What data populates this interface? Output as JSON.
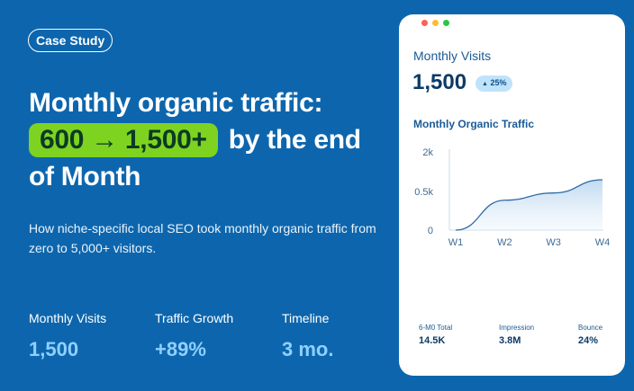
{
  "badge": "Case Study",
  "headline": {
    "line1": "Monthly organic traffic:",
    "highlight": "600 → 1,500+",
    "rest": "by the end of Month"
  },
  "subtitle": "How niche-specific local SEO took monthly organic traffic from zero to 5,000+ visitors.",
  "stats": [
    {
      "label": "Monthly Visits",
      "value": "1,500"
    },
    {
      "label": "Traffic Growth",
      "value": "+89%"
    },
    {
      "label": "Timeline",
      "value": "3 mo."
    }
  ],
  "card": {
    "title": "Monthly Visits",
    "value": "1,500",
    "change": "25%",
    "chart_title": "Monthly Organic Traffic",
    "metrics": [
      {
        "label": "6-M0 Total",
        "value": "14.5K"
      },
      {
        "label": "Impression",
        "value": "3.8M"
      },
      {
        "label": "Bounce",
        "value": "24%"
      }
    ]
  },
  "colors": {
    "background": "#0d66ad",
    "highlight": "#7ed321",
    "stat_value": "#8fd0ff",
    "window_dots": [
      "#ff5f57",
      "#febc2e",
      "#28c840"
    ]
  },
  "chart_data": {
    "type": "area",
    "x": [
      "W1",
      "W2",
      "W3",
      "W4"
    ],
    "y_tick_labels": [
      "0",
      "0.5k",
      "2k"
    ],
    "ylim": [
      0,
      2000
    ],
    "series": [
      {
        "values": [
          0,
          950,
          1180,
          1600
        ]
      }
    ],
    "grid": false
  }
}
